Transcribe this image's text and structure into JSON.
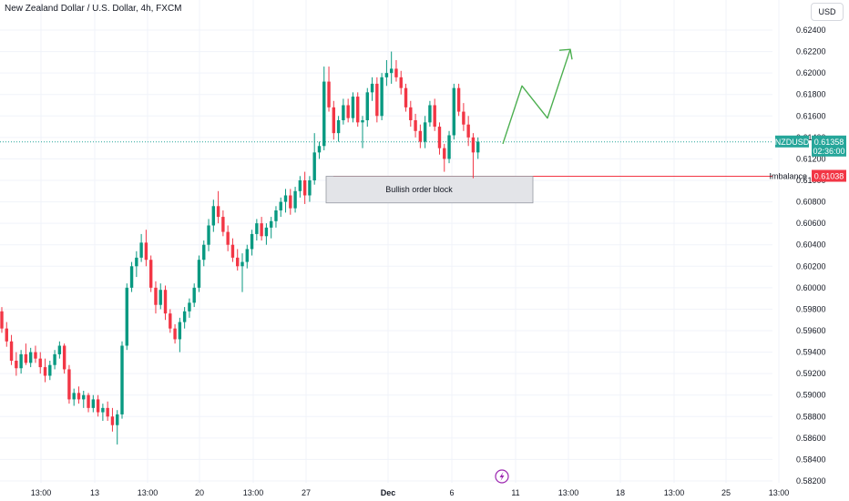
{
  "header": {
    "title": "New Zealand Dollar / U.S. Dollar, 4h, FXCM",
    "currency_button": "USD"
  },
  "colors": {
    "up": "#089981",
    "down": "#f23645",
    "arrow": "#4caf50",
    "current_line": "#26a69a",
    "imbalance_line": "#f23645",
    "order_block_fill": "#e3e4e8",
    "order_block_border": "#9598a1",
    "grid": "#f0f3fa",
    "alert_icon": "#9c27b0"
  },
  "chart_data": {
    "type": "candlestick",
    "symbol": "NZDUSD",
    "ylim": [
      0.5818,
      0.6252
    ],
    "yticks": [
      "0.62400",
      "0.62200",
      "0.62000",
      "0.61800",
      "0.61600",
      "0.61400",
      "0.61200",
      "0.61000",
      "0.60800",
      "0.60600",
      "0.60400",
      "0.60200",
      "0.60000",
      "0.59800",
      "0.59600",
      "0.59400",
      "0.59200",
      "0.59000",
      "0.58800",
      "0.58600",
      "0.58400",
      "0.58200"
    ],
    "xticks": [
      "13:00",
      "13",
      "13:00",
      "20",
      "13:00",
      "27",
      "Dec",
      "6",
      "11",
      "13:00",
      "18",
      "13:00",
      "25",
      "13:00"
    ],
    "current_price": {
      "label": "NZDUSD",
      "value": "0.61358",
      "countdown": "02:36:00"
    },
    "imbalance": {
      "label": "Imbalance",
      "value": "0.61038"
    },
    "order_block": {
      "label": "Bullish order block",
      "top": 0.61038,
      "bottom": 0.6079
    },
    "projection": [
      0.6134,
      0.6188,
      0.6158,
      0.6222
    ],
    "candles": [
      [
        0.5978,
        0.5982,
        0.5958,
        0.5962
      ],
      [
        0.5962,
        0.5968,
        0.5945,
        0.595
      ],
      [
        0.595,
        0.5956,
        0.5928,
        0.5932
      ],
      [
        0.5932,
        0.594,
        0.5918,
        0.5925
      ],
      [
        0.5925,
        0.5942,
        0.592,
        0.5938
      ],
      [
        0.5938,
        0.5948,
        0.5928,
        0.593
      ],
      [
        0.593,
        0.5944,
        0.5926,
        0.594
      ],
      [
        0.594,
        0.5946,
        0.593,
        0.5934
      ],
      [
        0.5934,
        0.594,
        0.592,
        0.5926
      ],
      [
        0.5926,
        0.5934,
        0.5912,
        0.5918
      ],
      [
        0.5918,
        0.5932,
        0.5914,
        0.5928
      ],
      [
        0.5928,
        0.5942,
        0.5924,
        0.5938
      ],
      [
        0.5938,
        0.595,
        0.5934,
        0.5946
      ],
      [
        0.5946,
        0.5948,
        0.592,
        0.5924
      ],
      [
        0.5924,
        0.5928,
        0.5892,
        0.5896
      ],
      [
        0.5896,
        0.5906,
        0.589,
        0.5902
      ],
      [
        0.5902,
        0.5908,
        0.5892,
        0.5896
      ],
      [
        0.5896,
        0.5904,
        0.5888,
        0.59
      ],
      [
        0.59,
        0.5902,
        0.5884,
        0.5888
      ],
      [
        0.5888,
        0.59,
        0.5884,
        0.5896
      ],
      [
        0.5896,
        0.59,
        0.588,
        0.5884
      ],
      [
        0.5884,
        0.5892,
        0.5876,
        0.5888
      ],
      [
        0.5888,
        0.5894,
        0.5876,
        0.588
      ],
      [
        0.588,
        0.5888,
        0.5866,
        0.5872
      ],
      [
        0.5872,
        0.5886,
        0.5854,
        0.5882
      ],
      [
        0.5882,
        0.595,
        0.5878,
        0.5946
      ],
      [
        0.5946,
        0.6004,
        0.5942,
        0.6
      ],
      [
        0.6,
        0.6024,
        0.5996,
        0.602
      ],
      [
        0.602,
        0.6034,
        0.601,
        0.6028
      ],
      [
        0.6028,
        0.605,
        0.6024,
        0.6042
      ],
      [
        0.6042,
        0.6054,
        0.602,
        0.6026
      ],
      [
        0.6026,
        0.603,
        0.5996,
        0.6
      ],
      [
        0.6,
        0.6006,
        0.5976,
        0.5984
      ],
      [
        0.5984,
        0.6004,
        0.598,
        0.5998
      ],
      [
        0.5998,
        0.6002,
        0.597,
        0.5976
      ],
      [
        0.5976,
        0.598,
        0.5958,
        0.5962
      ],
      [
        0.5962,
        0.5966,
        0.5948,
        0.5952
      ],
      [
        0.5952,
        0.5972,
        0.594,
        0.5968
      ],
      [
        0.5968,
        0.5982,
        0.5962,
        0.5978
      ],
      [
        0.5978,
        0.599,
        0.5972,
        0.5986
      ],
      [
        0.5986,
        0.6004,
        0.5982,
        0.6
      ],
      [
        0.6,
        0.603,
        0.5996,
        0.6026
      ],
      [
        0.6026,
        0.6044,
        0.602,
        0.604
      ],
      [
        0.604,
        0.6064,
        0.6034,
        0.6058
      ],
      [
        0.6058,
        0.6082,
        0.6052,
        0.6076
      ],
      [
        0.6076,
        0.609,
        0.606,
        0.6066
      ],
      [
        0.6066,
        0.6072,
        0.6048,
        0.6052
      ],
      [
        0.6052,
        0.6058,
        0.6034,
        0.604
      ],
      [
        0.604,
        0.6046,
        0.6024,
        0.6028
      ],
      [
        0.6028,
        0.6036,
        0.6016,
        0.602
      ],
      [
        0.602,
        0.6032,
        0.5996,
        0.6024
      ],
      [
        0.6024,
        0.604,
        0.6018,
        0.6036
      ],
      [
        0.6036,
        0.6054,
        0.603,
        0.605
      ],
      [
        0.605,
        0.6064,
        0.6044,
        0.606
      ],
      [
        0.606,
        0.6066,
        0.6044,
        0.6048
      ],
      [
        0.6048,
        0.606,
        0.604,
        0.6056
      ],
      [
        0.6056,
        0.6066,
        0.6046,
        0.6062
      ],
      [
        0.6062,
        0.6076,
        0.6056,
        0.6072
      ],
      [
        0.6072,
        0.6084,
        0.6066,
        0.608
      ],
      [
        0.608,
        0.6092,
        0.607,
        0.6086
      ],
      [
        0.6086,
        0.6092,
        0.6068,
        0.6074
      ],
      [
        0.6074,
        0.6094,
        0.607,
        0.609
      ],
      [
        0.609,
        0.6104,
        0.6084,
        0.61
      ],
      [
        0.61,
        0.6108,
        0.6078,
        0.6086
      ],
      [
        0.6086,
        0.6104,
        0.608,
        0.61
      ],
      [
        0.61,
        0.6144,
        0.6096,
        0.6126
      ],
      [
        0.6126,
        0.6136,
        0.612,
        0.6132
      ],
      [
        0.6132,
        0.6206,
        0.6128,
        0.6192
      ],
      [
        0.6192,
        0.6206,
        0.6164,
        0.6168
      ],
      [
        0.6168,
        0.6174,
        0.6138,
        0.6144
      ],
      [
        0.6144,
        0.616,
        0.6136,
        0.6156
      ],
      [
        0.6156,
        0.6176,
        0.6152,
        0.617
      ],
      [
        0.617,
        0.6176,
        0.6154,
        0.6158
      ],
      [
        0.6158,
        0.6182,
        0.6154,
        0.6178
      ],
      [
        0.6178,
        0.6182,
        0.615,
        0.6154
      ],
      [
        0.6154,
        0.616,
        0.613,
        0.6156
      ],
      [
        0.6156,
        0.6186,
        0.615,
        0.6182
      ],
      [
        0.6182,
        0.6196,
        0.6174,
        0.619
      ],
      [
        0.619,
        0.6196,
        0.6154,
        0.616
      ],
      [
        0.616,
        0.62,
        0.6156,
        0.6196
      ],
      [
        0.6196,
        0.6212,
        0.6188,
        0.62
      ],
      [
        0.62,
        0.622,
        0.619,
        0.6204
      ],
      [
        0.6204,
        0.6212,
        0.6192,
        0.6196
      ],
      [
        0.6196,
        0.6202,
        0.618,
        0.6186
      ],
      [
        0.6186,
        0.619,
        0.6164,
        0.6168
      ],
      [
        0.6168,
        0.6174,
        0.615,
        0.6156
      ],
      [
        0.6156,
        0.6162,
        0.614,
        0.6146
      ],
      [
        0.6146,
        0.6152,
        0.613,
        0.6136
      ],
      [
        0.6136,
        0.616,
        0.613,
        0.6154
      ],
      [
        0.6154,
        0.6174,
        0.615,
        0.617
      ],
      [
        0.617,
        0.6176,
        0.6146,
        0.615
      ],
      [
        0.615,
        0.6154,
        0.6124,
        0.613
      ],
      [
        0.613,
        0.6134,
        0.6108,
        0.612
      ],
      [
        0.612,
        0.6146,
        0.6116,
        0.6142
      ],
      [
        0.6142,
        0.619,
        0.6138,
        0.6186
      ],
      [
        0.6186,
        0.619,
        0.616,
        0.6164
      ],
      [
        0.6164,
        0.6172,
        0.6146,
        0.6152
      ],
      [
        0.6152,
        0.616,
        0.6132,
        0.614
      ],
      [
        0.614,
        0.6144,
        0.6102,
        0.6126
      ],
      [
        0.6126,
        0.614,
        0.612,
        0.6136
      ]
    ]
  }
}
